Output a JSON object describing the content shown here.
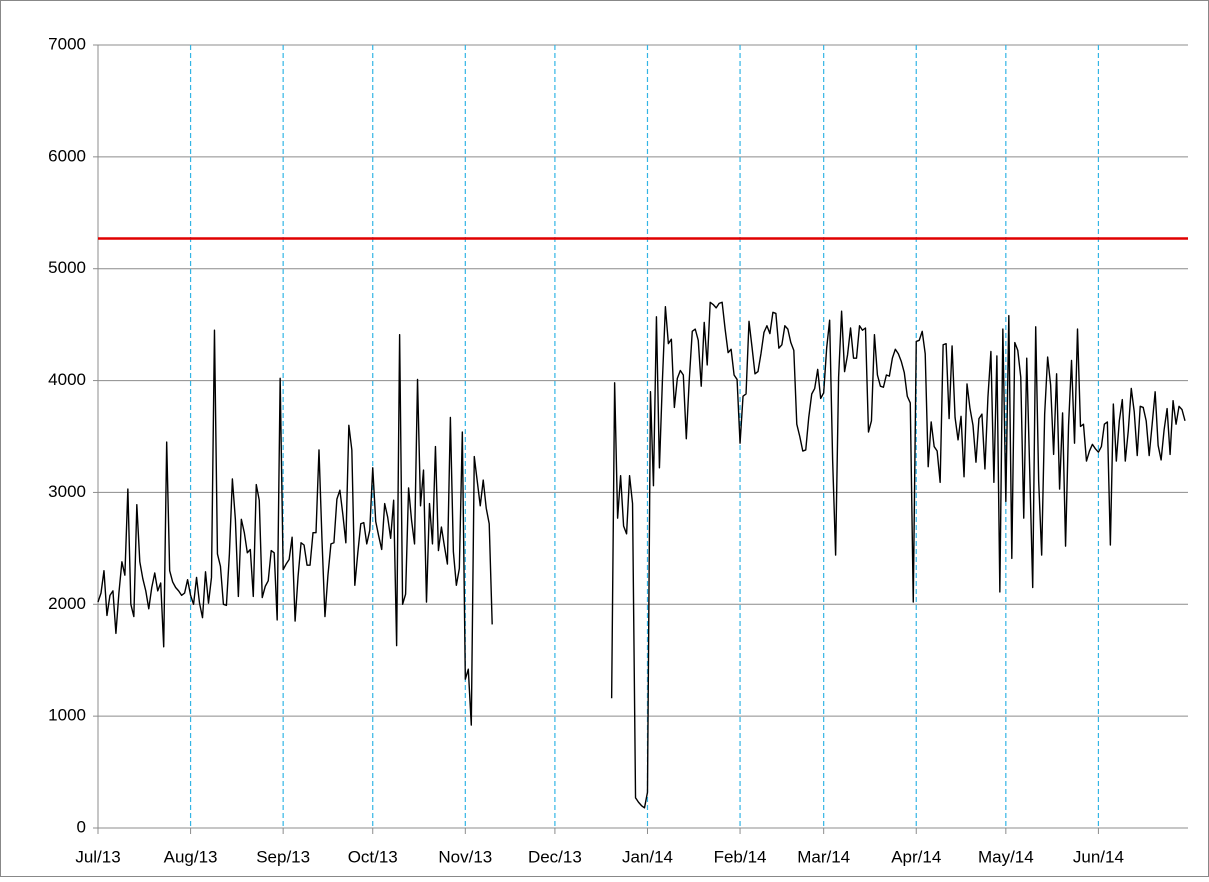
{
  "chart_data": {
    "type": "line",
    "xlim": [
      0,
      365
    ],
    "xticks": [
      {
        "value": 0,
        "label": "Jul/13"
      },
      {
        "value": 31,
        "label": "Aug/13"
      },
      {
        "value": 62,
        "label": "Sep/13"
      },
      {
        "value": 92,
        "label": "Oct/13"
      },
      {
        "value": 123,
        "label": "Nov/13"
      },
      {
        "value": 153,
        "label": "Dec/13"
      },
      {
        "value": 184,
        "label": "Jan/14"
      },
      {
        "value": 215,
        "label": "Feb/14"
      },
      {
        "value": 243,
        "label": "Mar/14"
      },
      {
        "value": 274,
        "label": "Apr/14"
      },
      {
        "value": 304,
        "label": "May/14"
      },
      {
        "value": 335,
        "label": "Jun/14"
      }
    ],
    "ylim": [
      0,
      7000
    ],
    "yticks": [
      0,
      1000,
      2000,
      3000,
      4000,
      5000,
      6000,
      7000
    ],
    "grid": true,
    "reference_line": {
      "value": 5270,
      "color": "#e00000"
    },
    "x": [
      0,
      1,
      2,
      3,
      4,
      5,
      6,
      7,
      8,
      9,
      10,
      11,
      12,
      13,
      14,
      15,
      16,
      17,
      18,
      19,
      20,
      21,
      22,
      23,
      24,
      25,
      26,
      27,
      28,
      29,
      30,
      31,
      32,
      33,
      34,
      35,
      36,
      37,
      38,
      39,
      40,
      41,
      42,
      43,
      44,
      45,
      46,
      47,
      48,
      49,
      50,
      51,
      52,
      53,
      54,
      55,
      56,
      57,
      58,
      59,
      60,
      61,
      62,
      63,
      64,
      65,
      66,
      67,
      68,
      69,
      70,
      71,
      72,
      73,
      74,
      75,
      76,
      77,
      78,
      79,
      80,
      81,
      82,
      83,
      84,
      85,
      86,
      87,
      88,
      89,
      90,
      91,
      92,
      93,
      94,
      95,
      96,
      97,
      98,
      99,
      100,
      101,
      102,
      103,
      104,
      105,
      106,
      107,
      108,
      109,
      110,
      111,
      112,
      113,
      114,
      115,
      116,
      117,
      118,
      119,
      120,
      121,
      122,
      123,
      124,
      125,
      126,
      127,
      128,
      129,
      130,
      131,
      132,
      133,
      134,
      135,
      136,
      137,
      138,
      139,
      140,
      141,
      142,
      143,
      144,
      145,
      146,
      147,
      148,
      149,
      150,
      151,
      152,
      153,
      154,
      155,
      156,
      157,
      158,
      159,
      160,
      161,
      162,
      163,
      164,
      165,
      166,
      167,
      168,
      169,
      170,
      171,
      172,
      173,
      174,
      175,
      176,
      177,
      178,
      179,
      180,
      181,
      182,
      183,
      184,
      185,
      186,
      187,
      188,
      189,
      190,
      191,
      192,
      193,
      194,
      195,
      196,
      197,
      198,
      199,
      200,
      201,
      202,
      203,
      204,
      205,
      206,
      207,
      208,
      209,
      210,
      211,
      212,
      213,
      214,
      215,
      216,
      217,
      218,
      219,
      220,
      221,
      222,
      223,
      224,
      225,
      226,
      227,
      228,
      229,
      230,
      231,
      232,
      233,
      234,
      235,
      236,
      237,
      238,
      239,
      240,
      241,
      242,
      243,
      244,
      245,
      246,
      247,
      248,
      249,
      250,
      251,
      252,
      253,
      254,
      255,
      256,
      257,
      258,
      259,
      260,
      261,
      262,
      263,
      264,
      265,
      266,
      267,
      268,
      269,
      270,
      271,
      272,
      273,
      274,
      275,
      276,
      277,
      278,
      279,
      280,
      281,
      282,
      283,
      284,
      285,
      286,
      287,
      288,
      289,
      290,
      291,
      292,
      293,
      294,
      295,
      296,
      297,
      298,
      299,
      300,
      301,
      302,
      303,
      304,
      305,
      306,
      307,
      308,
      309,
      310,
      311,
      312,
      313,
      314,
      315,
      316,
      317,
      318,
      319,
      320,
      321,
      322,
      323,
      324,
      325,
      326,
      327,
      328,
      329,
      330,
      331,
      332,
      333,
      334,
      335,
      336,
      337,
      338,
      339,
      340,
      341,
      342,
      343,
      344,
      345,
      346,
      347,
      348,
      349,
      350,
      351,
      352,
      353,
      354,
      355,
      356,
      357,
      358,
      359,
      360,
      361,
      362,
      363,
      364
    ],
    "series": [
      {
        "color": "#000000",
        "values": [
          2020,
          2100,
          2300,
          1900,
          2080,
          2120,
          1740,
          2100,
          2380,
          2260,
          3030,
          2000,
          1890,
          2890,
          2380,
          2230,
          2120,
          1960,
          2150,
          2280,
          2120,
          2190,
          1620,
          3450,
          2300,
          2200,
          2150,
          2120,
          2080,
          2100,
          2220,
          2080,
          2000,
          2240,
          2010,
          1880,
          2290,
          2010,
          2240,
          4450,
          2450,
          2340,
          2000,
          1990,
          2450,
          3120,
          2760,
          2070,
          2760,
          2640,
          2460,
          2490,
          2070,
          3070,
          2930,
          2060,
          2160,
          2210,
          2480,
          2460,
          1860,
          4020,
          2310,
          2360,
          2400,
          2600,
          1850,
          2250,
          2550,
          2530,
          2350,
          2350,
          2640,
          2640,
          3380,
          2580,
          1890,
          2260,
          2540,
          2550,
          2940,
          3020,
          2800,
          2550,
          3600,
          3380,
          2170,
          2460,
          2720,
          2730,
          2540,
          2660,
          3220,
          2740,
          2610,
          2490,
          2900,
          2780,
          2590,
          2930,
          1630,
          4410,
          2000,
          2090,
          3040,
          2750,
          2540,
          4010,
          2880,
          3200,
          2020,
          2900,
          2540,
          3410,
          2480,
          2690,
          2520,
          2360,
          3670,
          2470,
          2170,
          2320,
          3540,
          1330,
          1420,
          920,
          3320,
          3100,
          2880,
          3110,
          2860,
          2720,
          1820,
          null,
          null,
          null,
          null,
          null,
          null,
          null,
          null,
          null,
          null,
          null,
          null,
          null,
          null,
          null,
          null,
          null,
          null,
          null,
          null,
          null,
          null,
          null,
          null,
          null,
          null,
          null,
          null,
          null,
          null,
          null,
          null,
          null,
          null,
          null,
          null,
          null,
          null,
          null,
          1160,
          3980,
          2770,
          3150,
          2700,
          2630,
          3150,
          2900,
          270,
          230,
          200,
          180,
          320,
          3900,
          3060,
          4570,
          3220,
          4000,
          4660,
          4330,
          4370,
          3760,
          4020,
          4090,
          4050,
          3480,
          4010,
          4440,
          4460,
          4360,
          3950,
          4520,
          4140,
          4700,
          4680,
          4650,
          4690,
          4700,
          4460,
          4250,
          4280,
          4050,
          4010,
          3440,
          3860,
          3880,
          4530,
          4300,
          4060,
          4080,
          4240,
          4430,
          4490,
          4420,
          4610,
          4600,
          4290,
          4320,
          4490,
          4460,
          4340,
          4270,
          3610,
          3500,
          3370,
          3380,
          3670,
          3880,
          3930,
          4100,
          3840,
          3890,
          4290,
          4540,
          3290,
          2440,
          4030,
          4620,
          4080,
          4230,
          4470,
          4200,
          4200,
          4490,
          4450,
          4470,
          3540,
          3640,
          4410,
          4050,
          3950,
          3940,
          4050,
          4040,
          4200,
          4280,
          4240,
          4170,
          4070,
          3860,
          3800,
          2020,
          4350,
          4360,
          4440,
          4240,
          3230,
          3630,
          3410,
          3370,
          3090,
          4320,
          4330,
          3660,
          4310,
          3670,
          3470,
          3680,
          3140,
          3970,
          3750,
          3600,
          3270,
          3660,
          3700,
          3210,
          3850,
          4260,
          3090,
          4220,
          2110,
          4460,
          2920,
          4580,
          2410,
          4340,
          4270,
          4030,
          2770,
          4200,
          3190,
          2150,
          4480,
          3100,
          2440,
          3700,
          4210,
          3960,
          3340,
          4060,
          3030,
          3710,
          2520,
          3600,
          4180,
          3440,
          4460,
          3590,
          3610,
          3280,
          3370,
          3430,
          3390,
          3360,
          3410,
          3610,
          3630,
          2530,
          3790,
          3280,
          3640,
          3830,
          3280,
          3550,
          3930,
          3720,
          3330,
          3770,
          3760,
          3640,
          3330,
          3610,
          3900,
          3420,
          3290,
          3560,
          3750,
          3340,
          3820,
          3610,
          3770,
          3740,
          3640
        ]
      }
    ]
  }
}
